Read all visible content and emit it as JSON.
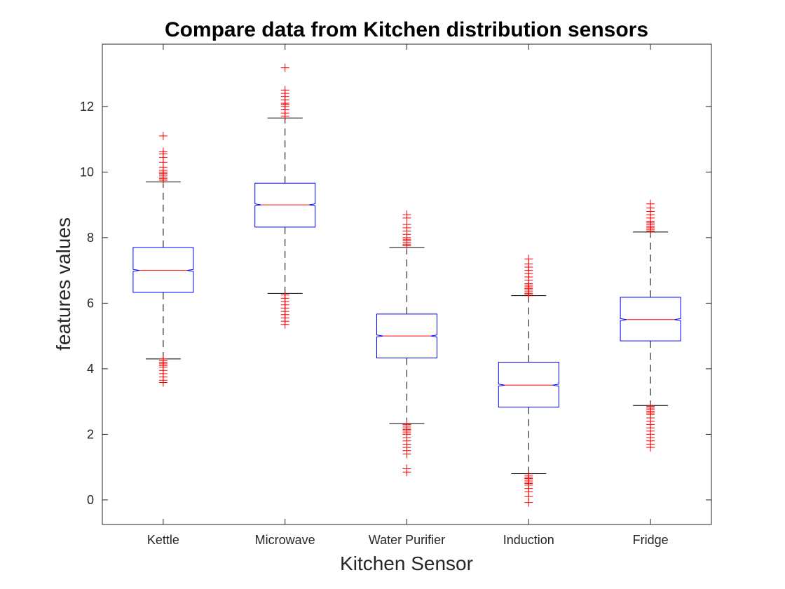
{
  "chart_data": {
    "type": "boxplot",
    "title": "Compare data from Kitchen distribution sensors",
    "xlabel": "Kitchen Sensor",
    "ylabel": "features values",
    "ylim": [
      -0.75,
      13.9
    ],
    "yticks": [
      0,
      2,
      4,
      6,
      8,
      10,
      12
    ],
    "notched": true,
    "grid": false,
    "colors": {
      "box": "#0000ff",
      "median": "#ff0000",
      "whisker": "#000000",
      "outlier": "#ff0000",
      "axis": "#262626"
    },
    "categories": [
      "Kettle",
      "Microwave",
      "Water Purifier",
      "Induction",
      "Fridge"
    ],
    "boxes": [
      {
        "name": "Kettle",
        "q1": 6.33,
        "median": 7.0,
        "q3": 7.7,
        "whisker_low": 4.3,
        "whisker_high": 9.7,
        "notch_low": 6.97,
        "notch_high": 7.03,
        "outliers_low": [
          4.3,
          4.25,
          4.2,
          4.15,
          4.1,
          4.05,
          3.95,
          3.85,
          3.75,
          3.65,
          3.58
        ],
        "outliers_high": [
          9.75,
          9.8,
          9.85,
          9.9,
          9.95,
          10.0,
          10.05,
          10.15,
          10.3,
          10.45,
          10.55,
          10.62,
          11.1
        ]
      },
      {
        "name": "Microwave",
        "q1": 8.32,
        "median": 9.0,
        "q3": 9.66,
        "whisker_low": 6.3,
        "whisker_high": 11.65,
        "notch_low": 8.97,
        "notch_high": 9.03,
        "outliers_low": [
          6.25,
          6.15,
          6.05,
          5.95,
          5.85,
          5.75,
          5.65,
          5.55,
          5.45,
          5.35
        ],
        "outliers_high": [
          11.7,
          11.8,
          11.9,
          12.0,
          12.05,
          12.1,
          12.2,
          12.3,
          12.4,
          12.5,
          13.18
        ]
      },
      {
        "name": "Water Purifier",
        "q1": 4.33,
        "median": 5.0,
        "q3": 5.67,
        "whisker_low": 2.33,
        "whisker_high": 7.7,
        "notch_low": 4.97,
        "notch_high": 5.03,
        "outliers_low": [
          2.3,
          2.25,
          2.2,
          2.15,
          2.1,
          2.05,
          2.0,
          1.9,
          1.8,
          1.7,
          1.6,
          1.5,
          1.4,
          0.95,
          0.85
        ],
        "outliers_high": [
          7.75,
          7.8,
          7.85,
          7.9,
          7.95,
          8.0,
          8.1,
          8.2,
          8.3,
          8.4,
          8.6,
          8.7
        ]
      },
      {
        "name": "Induction",
        "q1": 2.83,
        "median": 3.5,
        "q3": 4.2,
        "whisker_low": 0.8,
        "whisker_high": 6.23,
        "notch_low": 3.47,
        "notch_high": 3.53,
        "outliers_low": [
          0.75,
          0.7,
          0.65,
          0.6,
          0.55,
          0.5,
          0.45,
          0.35,
          0.25,
          0.1,
          -0.08
        ],
        "outliers_high": [
          6.25,
          6.3,
          6.35,
          6.4,
          6.45,
          6.5,
          6.55,
          6.6,
          6.7,
          6.8,
          6.9,
          7.0,
          7.1,
          7.2,
          7.35
        ]
      },
      {
        "name": "Fridge",
        "q1": 4.85,
        "median": 5.5,
        "q3": 6.18,
        "whisker_low": 2.88,
        "whisker_high": 8.17,
        "notch_low": 5.47,
        "notch_high": 5.53,
        "outliers_low": [
          2.85,
          2.8,
          2.75,
          2.7,
          2.65,
          2.6,
          2.5,
          2.4,
          2.3,
          2.2,
          2.1,
          2.0,
          1.9,
          1.8,
          1.7,
          1.6
        ],
        "outliers_high": [
          8.2,
          8.25,
          8.3,
          8.35,
          8.4,
          8.45,
          8.5,
          8.6,
          8.7,
          8.8,
          8.9,
          9.03
        ]
      }
    ]
  }
}
